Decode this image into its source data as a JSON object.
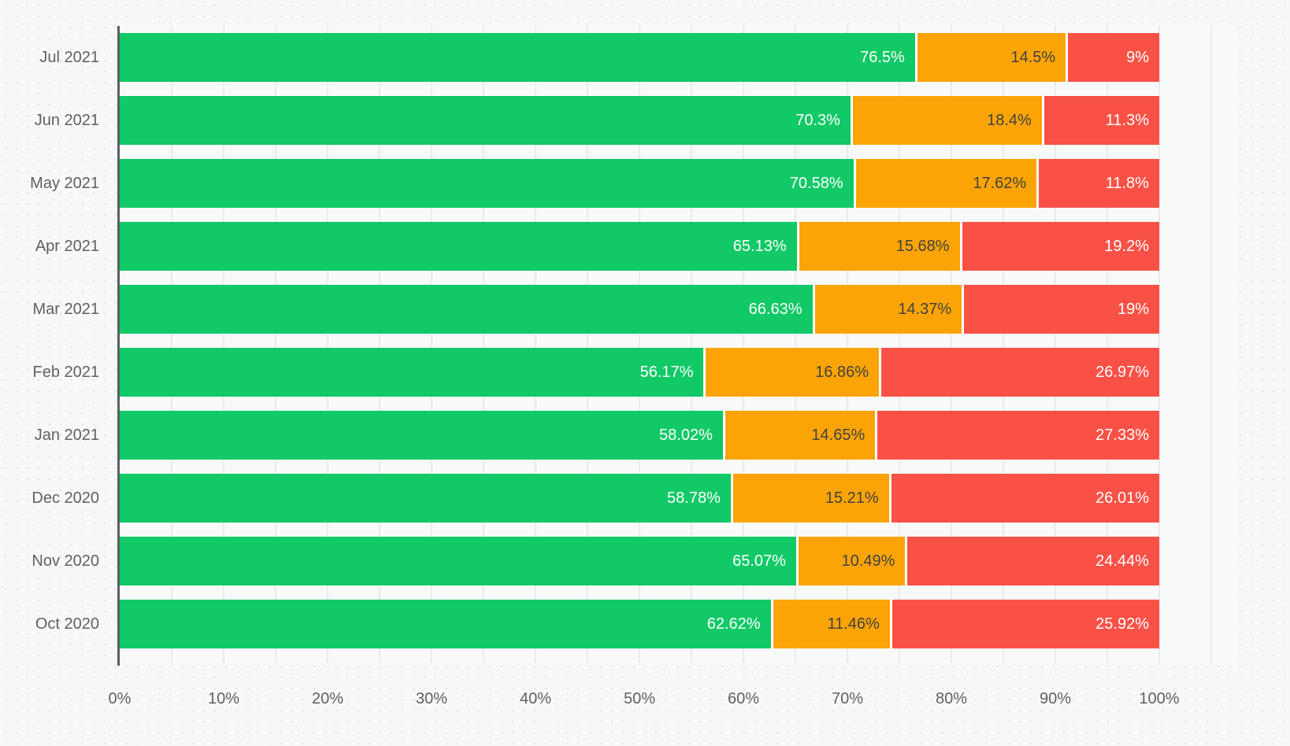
{
  "chart_data": {
    "type": "bar",
    "orientation": "horizontal",
    "stacked": true,
    "title": "",
    "xlabel": "",
    "ylabel": "",
    "categories": [
      "Jul 2021",
      "Jun 2021",
      "May 2021",
      "Apr 2021",
      "Mar 2021",
      "Feb 2021",
      "Jan 2021",
      "Dec 2020",
      "Nov 2020",
      "Oct 2020"
    ],
    "series": [
      {
        "name": "green-segment",
        "color": "#11c966",
        "label_color": "#ffffff",
        "values": [
          76.5,
          70.3,
          70.58,
          65.13,
          66.63,
          56.17,
          58.02,
          58.78,
          65.07,
          62.62
        ],
        "labels": [
          "76.5%",
          "70.3%",
          "70.58%",
          "65.13%",
          "66.63%",
          "56.17%",
          "58.02%",
          "58.78%",
          "65.07%",
          "62.62%"
        ]
      },
      {
        "name": "orange-segment",
        "color": "#fca405",
        "label_color": "#424242",
        "values": [
          14.5,
          18.4,
          17.62,
          15.68,
          14.37,
          16.86,
          14.65,
          15.21,
          10.49,
          11.46
        ],
        "labels": [
          "14.5%",
          "18.4%",
          "17.62%",
          "15.68%",
          "14.37%",
          "16.86%",
          "14.65%",
          "15.21%",
          "10.49%",
          "11.46%"
        ]
      },
      {
        "name": "red-segment",
        "color": "#f95146",
        "label_color": "#ffffff",
        "values": [
          9,
          11.3,
          11.8,
          19.2,
          19,
          26.97,
          27.33,
          26.01,
          24.44,
          25.92
        ],
        "labels": [
          "9%",
          "11.3%",
          "11.8%",
          "19.2%",
          "19%",
          "26.97%",
          "27.33%",
          "26.01%",
          "24.44%",
          "25.92%"
        ]
      }
    ],
    "x_axis": {
      "ticks": [
        "0%",
        "10%",
        "20%",
        "30%",
        "40%",
        "50%",
        "60%",
        "70%",
        "80%",
        "90%",
        "100%"
      ],
      "range": [
        0,
        100
      ],
      "grid_step_percent": 5
    },
    "legend": "none",
    "grid": "vertical minor gridlines every 5%"
  },
  "style": {
    "background": "#f7f8f8",
    "dot_pattern_color": "#e2e4e4",
    "grid_color": "#e9eaea",
    "axis_line_color": "#5a5f62",
    "axis_text_color": "#5d6165",
    "segment_separator_color": "#ffffff"
  }
}
